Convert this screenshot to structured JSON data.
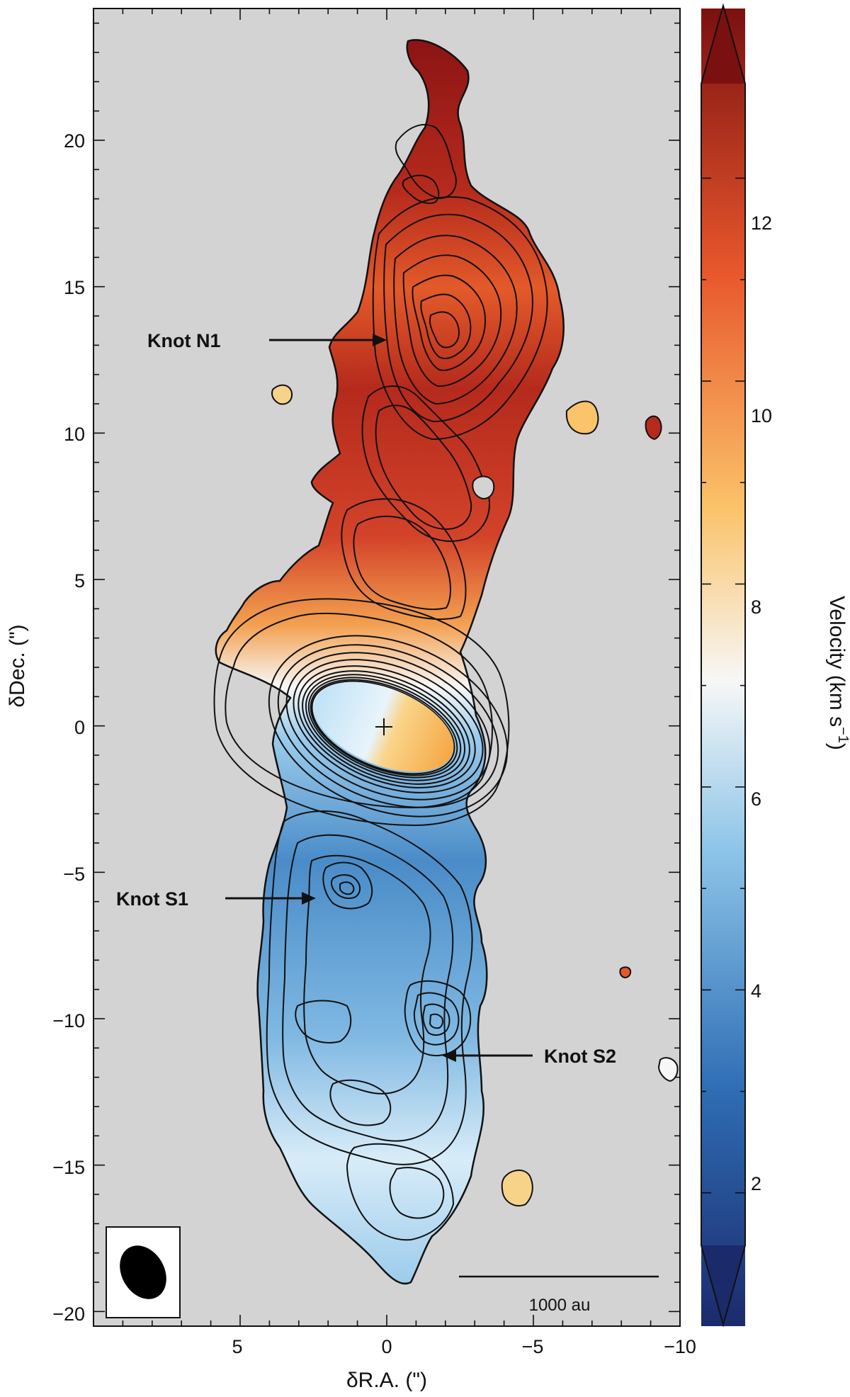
{
  "figure": {
    "xlabel": "δR.A. (\")",
    "ylabel": "δDec. (\")",
    "x_ticks": [
      "5",
      "0",
      "−5",
      "−10"
    ],
    "y_ticks": [
      "20",
      "15",
      "10",
      "5",
      "0",
      "−5",
      "−10",
      "−15",
      "−20"
    ],
    "x_range": [
      10,
      -10
    ],
    "y_range": [
      -20.5,
      24.5
    ],
    "background_color": "#d3d3d3"
  },
  "colorbar": {
    "label": "Velocity (km s",
    "label_sup": "−1",
    "label_end": ")",
    "ticks": [
      "12",
      "10",
      "8",
      "6",
      "4",
      "2"
    ],
    "range": [
      0.7,
      13.7
    ],
    "colors": [
      "#1b2a6b",
      "#2f6db5",
      "#8cc4e8",
      "#f7f7f7",
      "#fbc36a",
      "#e8572c",
      "#7a1010"
    ]
  },
  "annotations": {
    "knot_n1": "Knot N1",
    "knot_s1": "Knot S1",
    "knot_s2": "Knot S2",
    "scale_bar": "1000 au"
  }
}
